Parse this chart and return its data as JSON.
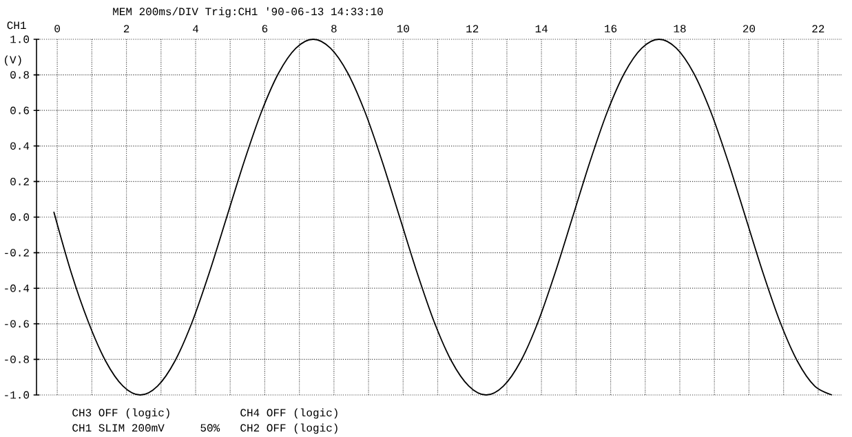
{
  "chart_data": {
    "type": "line",
    "title": "MEM   200ms/DIV Trig:CH1 '90-06-13 14:33:10",
    "ylabel": "CH1",
    "annotations": [
      "(V)",
      "CH3 OFF (logic)",
      "CH4 OFF (logic)",
      "CH1 SLIM 200mV",
      "50%",
      "CH2 OFF (logic)"
    ],
    "x": [
      -0.1,
      0.4,
      0.9,
      1.4,
      1.9,
      2.4,
      2.9,
      3.4,
      3.9,
      4.4,
      4.9,
      5.4,
      5.9,
      6.4,
      6.9,
      7.4,
      7.9,
      8.4,
      8.9,
      9.4,
      9.9,
      10.4,
      10.9,
      11.4,
      11.9,
      12.4,
      12.9,
      13.4,
      13.9,
      14.4,
      14.9,
      15.4,
      15.9,
      16.4,
      16.9,
      17.4,
      17.9,
      18.4,
      18.9,
      19.4,
      19.9,
      20.4,
      20.9,
      21.4,
      21.9,
      22.4
    ],
    "series": [
      {
        "color": "#000000",
        "values": [
          0.03,
          -0.31,
          -0.59,
          -0.81,
          -0.95,
          -1.0,
          -0.95,
          -0.81,
          -0.59,
          -0.31,
          0.0,
          0.31,
          0.59,
          0.81,
          0.95,
          1.0,
          0.95,
          0.81,
          0.59,
          0.31,
          0.0,
          -0.31,
          -0.59,
          -0.81,
          -0.95,
          -1.0,
          -0.95,
          -0.81,
          -0.59,
          -0.31,
          0.0,
          0.31,
          0.59,
          0.81,
          0.95,
          1.0,
          0.95,
          0.81,
          0.59,
          0.31,
          0.0,
          -0.31,
          -0.59,
          -0.81,
          -0.95,
          -1.0
        ]
      }
    ],
    "xlim": [
      -0.6,
      22.7
    ],
    "ylim": [
      -1.0,
      1.0
    ],
    "xticks": [
      0,
      {
        "value": 1,
        "label": null
      },
      2,
      {
        "value": 3,
        "label": null
      },
      4,
      {
        "value": 5,
        "label": null
      },
      6,
      {
        "value": 7,
        "label": null
      },
      8,
      {
        "value": 9,
        "label": null
      },
      10,
      {
        "value": 11,
        "label": null
      },
      12,
      {
        "value": 13,
        "label": null
      },
      14,
      {
        "value": 15,
        "label": null
      },
      16,
      {
        "value": 17,
        "label": null
      },
      18,
      {
        "value": 19,
        "label": null
      },
      20,
      {
        "value": 21,
        "label": null
      },
      22
    ],
    "yticks": [
      {
        "value": -1.0,
        "label": "-1.0"
      },
      {
        "value": -0.8,
        "label": "-0.8"
      },
      {
        "value": -0.6,
        "label": "-0.6"
      },
      {
        "value": -0.4,
        "label": "-0.4"
      },
      {
        "value": -0.2,
        "label": "-0.2"
      },
      {
        "value": 0.0,
        "label": "0.0"
      },
      {
        "value": 0.2,
        "label": "0.2"
      },
      {
        "value": 0.4,
        "label": "0.4"
      },
      {
        "value": 0.6,
        "label": "0.6"
      },
      {
        "value": 0.8,
        "label": "0.8"
      },
      {
        "value": 1.0,
        "label": "1.0"
      }
    ],
    "grid": true,
    "marker": "none",
    "line_style": "solid"
  }
}
